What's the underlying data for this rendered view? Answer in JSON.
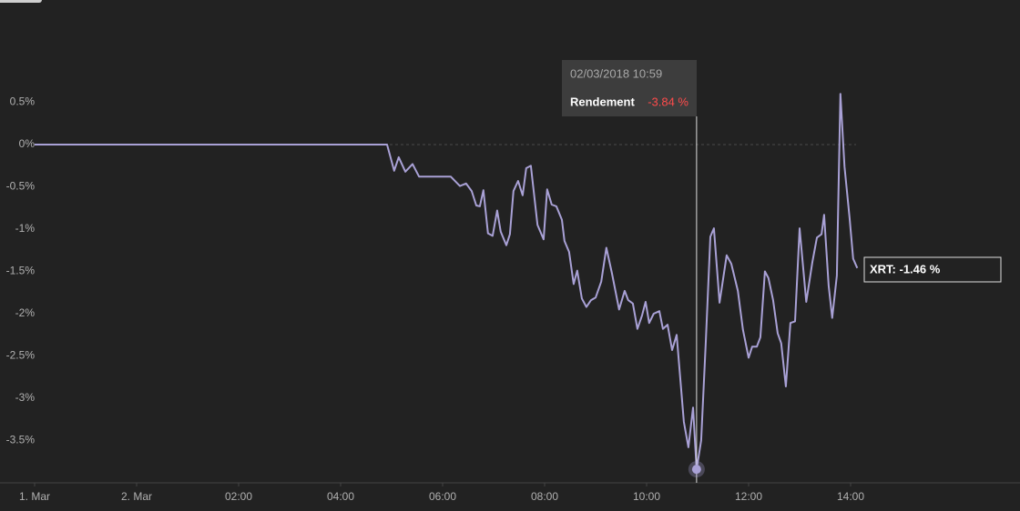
{
  "chart_data": {
    "type": "line",
    "x": [
      -2,
      4.91,
      5.05,
      5.14,
      5.27,
      5.41,
      5.54,
      5.8,
      6.16,
      6.34,
      6.46,
      6.57,
      6.66,
      6.73,
      6.8,
      6.89,
      6.98,
      7.07,
      7.14,
      7.25,
      7.32,
      7.39,
      7.48,
      7.57,
      7.64,
      7.73,
      7.86,
      7.98,
      8.05,
      8.14,
      8.23,
      8.34,
      8.39,
      8.48,
      8.57,
      8.64,
      8.73,
      8.82,
      8.91,
      9.0,
      9.11,
      9.21,
      9.32,
      9.46,
      9.57,
      9.64,
      9.73,
      9.82,
      9.91,
      9.98,
      10.05,
      10.14,
      10.25,
      10.32,
      10.41,
      10.5,
      10.59,
      10.73,
      10.82,
      10.91,
      10.98,
      11.07,
      11.16,
      11.25,
      11.32,
      11.43,
      11.57,
      11.66,
      11.79,
      11.89,
      12.0,
      12.07,
      12.16,
      12.23,
      12.32,
      12.39,
      12.48,
      12.57,
      12.64,
      12.73,
      12.82,
      12.91,
      13.0,
      13.13,
      13.25,
      13.34,
      13.43,
      13.48,
      13.57,
      13.64,
      13.73,
      13.8,
      13.88,
      13.98,
      14.05,
      14.13
    ],
    "series": [
      {
        "name": "XRT",
        "color": "#a9a1d6",
        "values": [
          0,
          0,
          -0.31,
          -0.15,
          -0.32,
          -0.23,
          -0.38,
          -0.38,
          -0.38,
          -0.49,
          -0.46,
          -0.55,
          -0.72,
          -0.73,
          -0.54,
          -1.05,
          -1.08,
          -0.78,
          -1.03,
          -1.19,
          -1.06,
          -0.55,
          -0.43,
          -0.6,
          -0.28,
          -0.25,
          -0.95,
          -1.12,
          -0.53,
          -0.71,
          -0.73,
          -0.89,
          -1.14,
          -1.27,
          -1.65,
          -1.49,
          -1.82,
          -1.92,
          -1.84,
          -1.81,
          -1.62,
          -1.22,
          -1.52,
          -1.95,
          -1.73,
          -1.84,
          -1.88,
          -2.18,
          -2.02,
          -1.86,
          -2.11,
          -2.0,
          -1.97,
          -2.18,
          -2.13,
          -2.43,
          -2.25,
          -3.28,
          -3.58,
          -3.11,
          -3.84,
          -3.5,
          -2.33,
          -1.09,
          -0.99,
          -1.87,
          -1.31,
          -1.41,
          -1.73,
          -2.19,
          -2.52,
          -2.39,
          -2.39,
          -2.28,
          -1.5,
          -1.58,
          -1.84,
          -2.23,
          -2.35,
          -2.86,
          -2.11,
          -2.09,
          -0.99,
          -1.86,
          -1.39,
          -1.1,
          -1.06,
          -0.83,
          -1.67,
          -2.05,
          -1.55,
          0.6,
          -0.26,
          -0.87,
          -1.35,
          -1.46
        ]
      }
    ],
    "xlim": [
      -2,
      17
    ],
    "xticks": [
      {
        "value": -2,
        "label": "1. Mar"
      },
      {
        "value": 0,
        "label": "2. Mar"
      },
      {
        "value": 2,
        "label": "02:00"
      },
      {
        "value": 4,
        "label": "04:00"
      },
      {
        "value": 6,
        "label": "06:00"
      },
      {
        "value": 8,
        "label": "08:00"
      },
      {
        "value": 10,
        "label": "10:00"
      },
      {
        "value": 12,
        "label": "12:00"
      },
      {
        "value": 14,
        "label": "14:00"
      }
    ],
    "ylim": [
      -4,
      1
    ],
    "yticks": [
      {
        "value": 0.5,
        "label": "0.5%"
      },
      {
        "value": 0,
        "label": "0%"
      },
      {
        "value": -0.5,
        "label": "-0.5%"
      },
      {
        "value": -1,
        "label": "-1%"
      },
      {
        "value": -1.5,
        "label": "-1.5%"
      },
      {
        "value": -2,
        "label": "-2%"
      },
      {
        "value": -2.5,
        "label": "-2.5%"
      },
      {
        "value": -3,
        "label": "-3%"
      },
      {
        "value": -3.5,
        "label": "-3.5%"
      }
    ],
    "highlight_index": 60,
    "tooltip": {
      "date": "02/03/2018 10:59",
      "label": "Rendement",
      "value": "-3.84 %"
    },
    "end_label": "XRT: -1.46 %"
  }
}
